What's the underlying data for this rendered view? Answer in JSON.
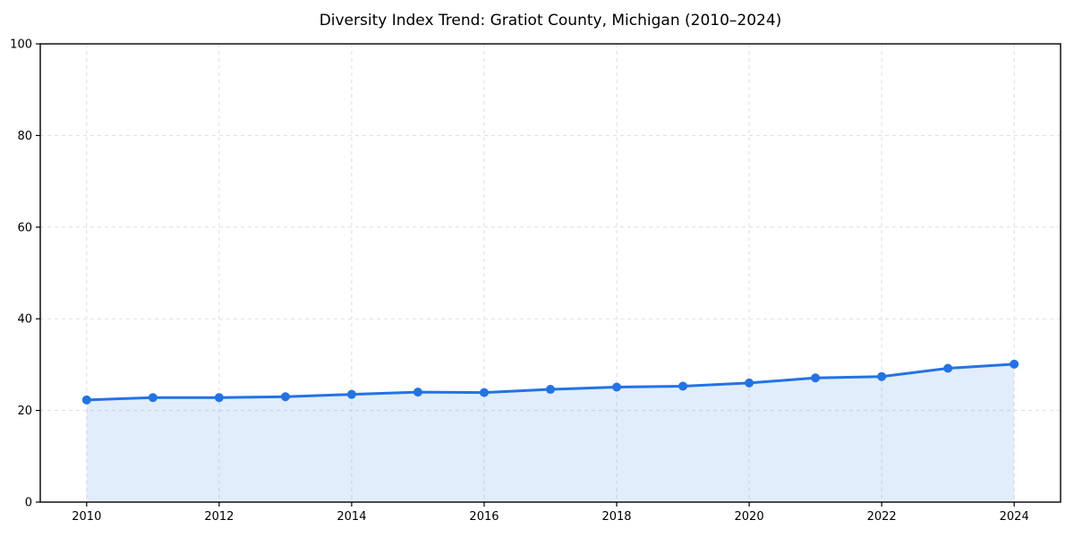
{
  "chart_data": {
    "type": "area",
    "title": "Diversity Index Trend: Gratiot County, Michigan (2010–2024)",
    "x": [
      2010,
      2011,
      2012,
      2013,
      2014,
      2015,
      2016,
      2017,
      2018,
      2019,
      2020,
      2021,
      2022,
      2023,
      2024
    ],
    "series": [
      {
        "name": "Diversity Index",
        "values": [
          22.3,
          22.8,
          22.8,
          23.0,
          23.5,
          24.0,
          23.9,
          24.6,
          25.1,
          25.3,
          26.0,
          27.1,
          27.4,
          29.2,
          30.1
        ]
      }
    ],
    "xlabel": "",
    "ylabel": "",
    "xlim": [
      2009.3,
      2024.7
    ],
    "ylim": [
      0,
      100
    ],
    "xticks": [
      2010,
      2012,
      2014,
      2016,
      2018,
      2020,
      2022,
      2024
    ],
    "yticks": [
      0,
      20,
      40,
      60,
      80,
      100
    ],
    "grid": true,
    "grid_style": "dashed",
    "legend": "none",
    "marker": "circle",
    "colors": {
      "line": "#2273e6",
      "fill": "rgba(34,115,230,0.13)",
      "grid": "#dddddd",
      "axis": "#000000",
      "text": "#000000",
      "background": "#ffffff"
    }
  }
}
